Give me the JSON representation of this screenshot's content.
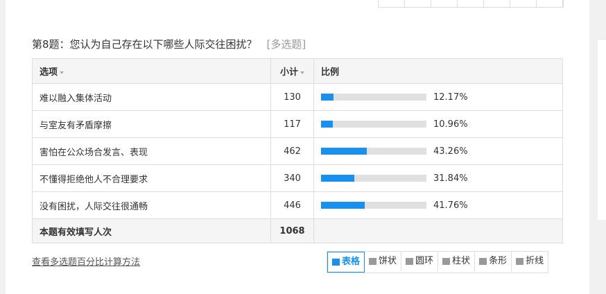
{
  "question": {
    "title": "第8题：您认为自己存在以下哪些人际交往困扰？",
    "tag": "[多选题]"
  },
  "table": {
    "headers": [
      "选项",
      "小计",
      "比例"
    ],
    "rows": [
      {
        "option": "难以融入集体活动",
        "count": 130,
        "percent": {
          "value": 12.17,
          "label": "12.17%"
        }
      },
      {
        "option": "与室友有矛盾摩擦",
        "count": 117,
        "percent": {
          "value": 10.96,
          "label": "10.96%"
        }
      },
      {
        "option": "害怕在公众场合发言、表现",
        "count": 462,
        "percent": {
          "value": 43.26,
          "label": "43.26%"
        }
      },
      {
        "option": "不懂得拒绝他人不合理要求",
        "count": 340,
        "percent": {
          "value": 31.84,
          "label": "31.84%"
        }
      },
      {
        "option": "没有困扰，人际交往很通畅",
        "count": 446,
        "percent": {
          "value": 41.76,
          "label": "41.76%"
        }
      }
    ],
    "footer": {
      "label": "本题有效填写人次",
      "count": 1068
    }
  },
  "link": "查看多选题百分比计算方法",
  "buttons": [
    "表格",
    "饼状",
    "圆环",
    "柱状",
    "条形",
    "折线"
  ]
}
